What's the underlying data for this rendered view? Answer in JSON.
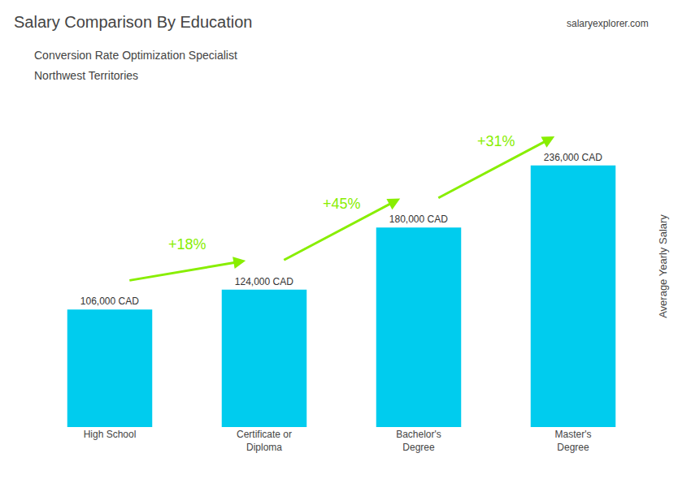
{
  "chart_data": {
    "type": "bar",
    "title": "Salary Comparison By Education",
    "subtitle": [
      "Conversion Rate Optimization Specialist",
      "Northwest Territories"
    ],
    "ylabel": "Average Yearly Salary",
    "categories": [
      "High School",
      "Certificate or\nDiploma",
      "Bachelor's\nDegree",
      "Master's\nDegree"
    ],
    "values": [
      106000,
      124000,
      180000,
      236000
    ],
    "value_labels": [
      "106,000 CAD",
      "124,000 CAD",
      "180,000 CAD",
      "236,000 CAD"
    ],
    "data_labels": true,
    "color": "#00ccee",
    "ylim": [
      0,
      290000
    ],
    "yticks": [],
    "tick_labels": "x",
    "grid": false,
    "annotations": [
      {
        "text": "+18%",
        "from": "High School",
        "to": "Certificate or\nDiploma",
        "color": "#88ee00"
      },
      {
        "text": "+45%",
        "from": "Certificate or\nDiploma",
        "to": "Bachelor's\nDegree",
        "color": "#88ee00"
      },
      {
        "text": "+31%",
        "from": "Bachelor's\nDegree",
        "to": "Master's\nDegree",
        "color": "#88ee00"
      },
      {
        "text": "salaryexplorer.com"
      }
    ]
  }
}
